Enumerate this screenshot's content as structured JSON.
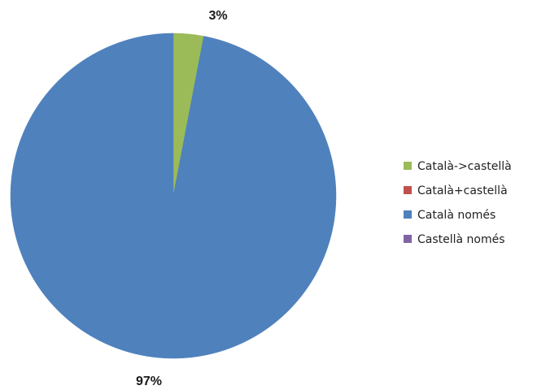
{
  "chart_data": {
    "type": "pie",
    "title": "",
    "categories": [
      "Català->castellà",
      "Català+castellà",
      "Català només",
      "Castellà només"
    ],
    "values": [
      3,
      0,
      97,
      0
    ],
    "colors": [
      "#9BBB59",
      "#C0504D",
      "#4F81BD",
      "#8064A2"
    ],
    "data_labels": [
      "3%",
      "",
      "97%",
      ""
    ],
    "legend_position": "right",
    "start_angle": "12 o'clock, clockwise"
  }
}
